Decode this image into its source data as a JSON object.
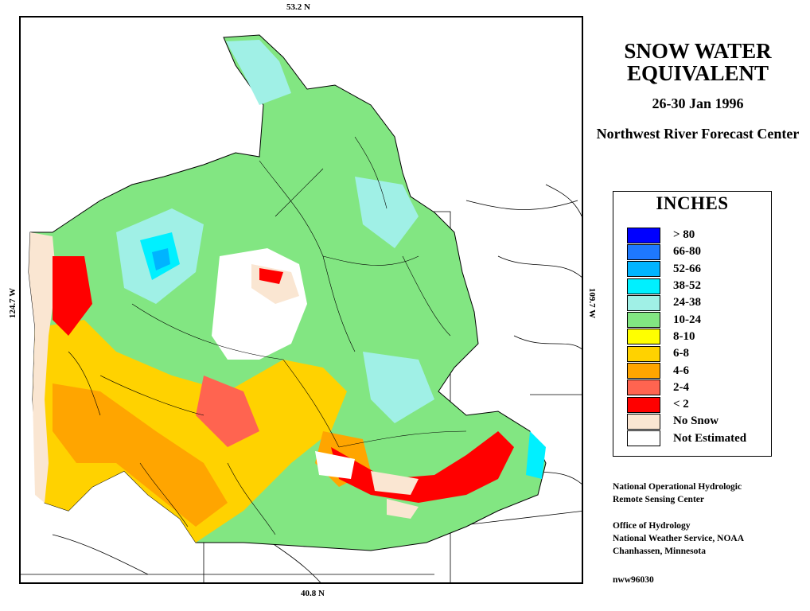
{
  "coordinates": {
    "north": "53.2 N",
    "south": "40.8 N",
    "west": "124.7 W",
    "east": "109.7 W"
  },
  "title": "SNOW WATER EQUIVALENT",
  "date": "26-30 Jan 1996",
  "forecast_center": "Northwest River Forecast Center",
  "legend": {
    "title": "INCHES",
    "items": [
      {
        "label": "> 80",
        "color": "#0000ff"
      },
      {
        "label": "66-80",
        "color": "#1e78ff"
      },
      {
        "label": "52-66",
        "color": "#00b4ff"
      },
      {
        "label": "38-52",
        "color": "#00f0ff"
      },
      {
        "label": "24-38",
        "color": "#a0f0e6"
      },
      {
        "label": "10-24",
        "color": "#82e682"
      },
      {
        "label": "8-10",
        "color": "#ffff00"
      },
      {
        "label": "6-8",
        "color": "#ffd200"
      },
      {
        "label": "4-6",
        "color": "#ffa500"
      },
      {
        "label": "2-4",
        "color": "#ff6450"
      },
      {
        "label": "< 2",
        "color": "#ff0000"
      },
      {
        "label": "No Snow",
        "color": "#fae6d2"
      },
      {
        "label": "Not Estimated",
        "color": "#ffffff"
      }
    ]
  },
  "credits": {
    "line1": "National Operational Hydrologic",
    "line2": "Remote Sensing Center",
    "line3": "Office of Hydrology",
    "line4": "National Weather Service, NOAA",
    "line5": "Chanhassen, Minnesota"
  },
  "product_id": "nww96030"
}
